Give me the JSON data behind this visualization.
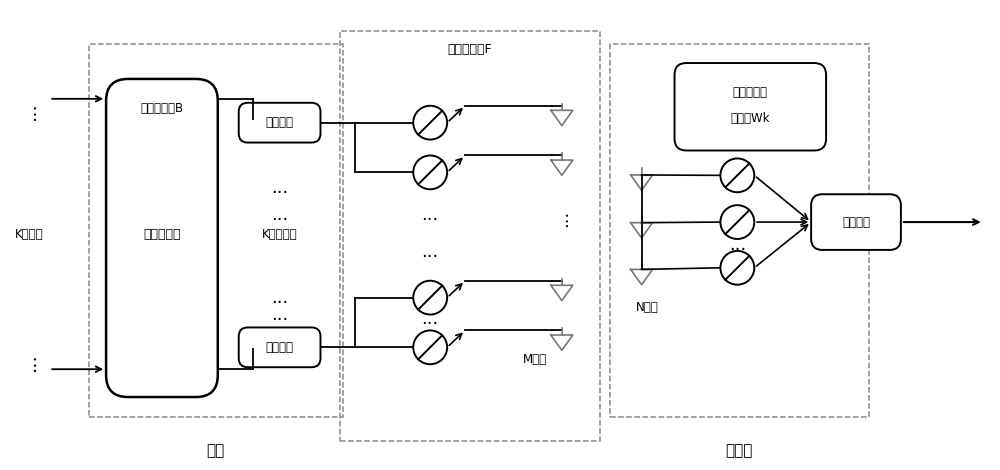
{
  "bg_color": "#ffffff",
  "lc": "#000000",
  "gray": "#888888",
  "fig_width": 10.0,
  "fig_height": 4.7,
  "label_jizhan": "基站",
  "label_yonghu": "用户端",
  "label_digital_b": "数字预编码B",
  "label_digital": "数字预编码",
  "label_analog_f": "模拟预编码F",
  "label_rf1": "射频电路",
  "label_rf2": "射频电路",
  "label_rf3": "射频电路",
  "label_k_data": "K数据流",
  "label_k_rf": "K射频电路",
  "label_m_ant": "M天线",
  "label_n_ant": "N天线",
  "label_recv_line1": "接收波束赋",
  "label_recv_line2": "形向量Wk"
}
